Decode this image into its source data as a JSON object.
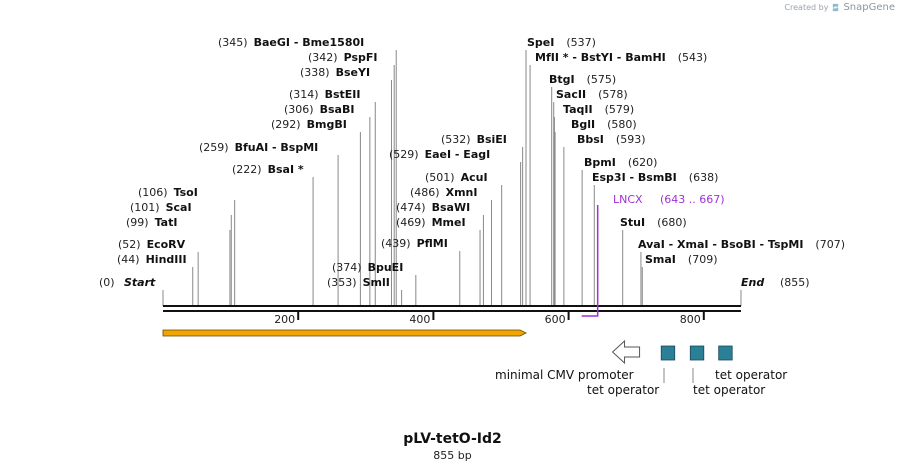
{
  "credit": {
    "prefix": "Created by",
    "brand": "SnapGene"
  },
  "plasmid": {
    "name": "pLV-tetO-Id2",
    "size_label": "855 bp",
    "length": 855
  },
  "colors": {
    "text": "#111111",
    "number": "#222222",
    "line": "#888888",
    "backbone": "#111111",
    "orf_fill": "#f0a500",
    "orf_stroke": "#6b4a00",
    "lncx": "#a030d8",
    "operator_fill": "#2b7f96",
    "operator_stroke": "#184a58",
    "promoter_stroke": "#555555"
  },
  "start_end": {
    "start_label": "Start",
    "start_pos": "(0)",
    "end_label": "End",
    "end_pos": "(855)"
  },
  "ticks": [
    {
      "pos": 200,
      "label": "200"
    },
    {
      "pos": 400,
      "label": "400"
    },
    {
      "pos": 600,
      "label": "600"
    },
    {
      "pos": 800,
      "label": "800"
    }
  ],
  "enzymes": [
    {
      "pos": 44,
      "pos_label": "(44)",
      "name": "HindIII"
    },
    {
      "pos": 52,
      "pos_label": "(52)",
      "name": "EcoRV"
    },
    {
      "pos": 99,
      "pos_label": "(99)",
      "name": "TatI"
    },
    {
      "pos": 101,
      "pos_label": "(101)",
      "name": "ScaI"
    },
    {
      "pos": 106,
      "pos_label": "(106)",
      "name": "TsoI"
    },
    {
      "pos": 222,
      "pos_label": "(222)",
      "name": "BsaI *"
    },
    {
      "pos": 259,
      "pos_label": "(259)",
      "name": "BfuAI  -  BspMI"
    },
    {
      "pos": 292,
      "pos_label": "(292)",
      "name": "BmgBI"
    },
    {
      "pos": 306,
      "pos_label": "(306)",
      "name": "BsaBI"
    },
    {
      "pos": 314,
      "pos_label": "(314)",
      "name": "BstEII"
    },
    {
      "pos": 338,
      "pos_label": "(338)",
      "name": "BseYI"
    },
    {
      "pos": 342,
      "pos_label": "(342)",
      "name": "PspFI"
    },
    {
      "pos": 345,
      "pos_label": "(345)",
      "name": "BaeGI  -  Bme1580I"
    },
    {
      "pos": 353,
      "pos_label": "(353)",
      "name": "SmlI"
    },
    {
      "pos": 374,
      "pos_label": "(374)",
      "name": "BpuEI"
    },
    {
      "pos": 439,
      "pos_label": "(439)",
      "name": "PflMI"
    },
    {
      "pos": 469,
      "pos_label": "(469)",
      "name": "MmeI"
    },
    {
      "pos": 474,
      "pos_label": "(474)",
      "name": "BsaWI"
    },
    {
      "pos": 486,
      "pos_label": "(486)",
      "name": "XmnI"
    },
    {
      "pos": 501,
      "pos_label": "(501)",
      "name": "AcuI"
    },
    {
      "pos": 529,
      "pos_label": "(529)",
      "name": "EaeI  -  EagI"
    },
    {
      "pos": 532,
      "pos_label": "(532)",
      "name": "BsiEI"
    },
    {
      "pos": 537,
      "pos_label": "(537)",
      "name": "SpeI"
    },
    {
      "pos": 543,
      "pos_label": "(543)",
      "name": "MfII *  -  BstYI  -  BamHI"
    },
    {
      "pos": 575,
      "pos_label": "(575)",
      "name": "BtgI"
    },
    {
      "pos": 578,
      "pos_label": "(578)",
      "name": "SacII"
    },
    {
      "pos": 579,
      "pos_label": "(579)",
      "name": "TaqII"
    },
    {
      "pos": 580,
      "pos_label": "(580)",
      "name": "BglI"
    },
    {
      "pos": 593,
      "pos_label": "(593)",
      "name": "BbsI"
    },
    {
      "pos": 620,
      "pos_label": "(620)",
      "name": "BpmI"
    },
    {
      "pos": 638,
      "pos_label": "(638)",
      "name": "Esp3I  -  BsmBI"
    },
    {
      "pos": 680,
      "pos_label": "(680)",
      "name": "StuI"
    },
    {
      "pos": 707,
      "pos_label": "(707)",
      "name": "AvaI  -  XmaI  -  BsoBI  -  TspMI"
    },
    {
      "pos": 709,
      "pos_label": "(709)",
      "name": "SmaI"
    }
  ],
  "lncx": {
    "name": "LNCX",
    "range_label": "(643 .. 667)",
    "start": 643,
    "end": 667
  },
  "orf": {
    "start": 0,
    "end": 540
  },
  "features": [
    {
      "name": "minimal CMV promoter",
      "type": "promoter",
      "start": 665,
      "end": 705
    },
    {
      "name": "tet operator",
      "type": "operator",
      "start": 737,
      "end": 757
    },
    {
      "name": "tet operator",
      "type": "operator",
      "start": 780,
      "end": 800
    },
    {
      "name": "tet operator",
      "type": "operator",
      "start": 822,
      "end": 842
    }
  ]
}
